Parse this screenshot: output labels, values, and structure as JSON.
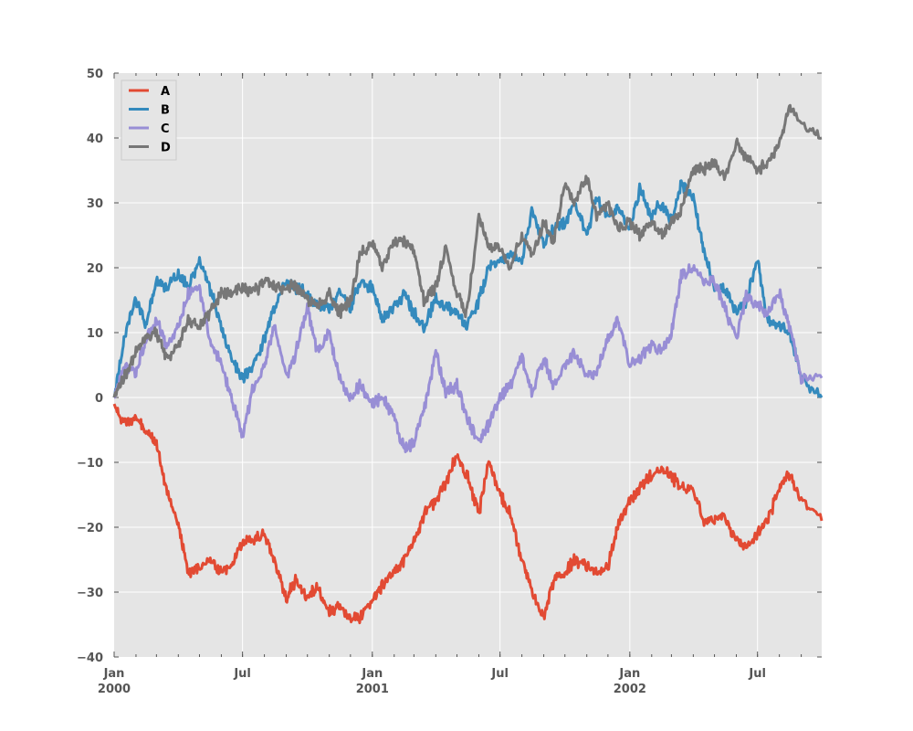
{
  "chart_data": {
    "type": "line",
    "title": "",
    "xlabel": "",
    "ylabel": "",
    "xlim": [
      "2000-01-01",
      "2002-09-30"
    ],
    "ylim": [
      -40,
      50
    ],
    "yticks": [
      -40,
      -30,
      -20,
      -10,
      0,
      10,
      20,
      30,
      40,
      50
    ],
    "ytick_labels": [
      "−40",
      "−30",
      "−20",
      "−10",
      "0",
      "10",
      "20",
      "30",
      "40",
      "50"
    ],
    "xticks": [
      {
        "date": "2000-01-01",
        "label": "Jan",
        "sublabel": "2000"
      },
      {
        "date": "2000-07-01",
        "label": "Jul",
        "sublabel": ""
      },
      {
        "date": "2001-01-01",
        "label": "Jan",
        "sublabel": "2001"
      },
      {
        "date": "2001-07-01",
        "label": "Jul",
        "sublabel": ""
      },
      {
        "date": "2002-01-01",
        "label": "Jan",
        "sublabel": "2002"
      },
      {
        "date": "2002-07-01",
        "label": "Jul",
        "sublabel": ""
      }
    ],
    "grid": true,
    "legend_position": "top-left",
    "colors": {
      "background": "#e5e5e5",
      "grid": "#ffffff",
      "A": "#e24a33",
      "B": "#348abd",
      "C": "#988ed5",
      "D": "#777777"
    },
    "series": [
      {
        "name": "A",
        "color": "#e24a33",
        "points": [
          [
            "2000-01-01",
            -1
          ],
          [
            "2000-01-15",
            -4
          ],
          [
            "2000-02-01",
            -3
          ],
          [
            "2000-02-15",
            -5
          ],
          [
            "2000-03-01",
            -7
          ],
          [
            "2000-03-15",
            -14
          ],
          [
            "2000-04-01",
            -20
          ],
          [
            "2000-04-15",
            -27
          ],
          [
            "2000-05-01",
            -26
          ],
          [
            "2000-05-15",
            -25
          ],
          [
            "2000-06-01",
            -27
          ],
          [
            "2000-06-15",
            -26
          ],
          [
            "2000-07-01",
            -22
          ],
          [
            "2000-07-15",
            -22
          ],
          [
            "2000-08-01",
            -21
          ],
          [
            "2000-08-15",
            -25
          ],
          [
            "2000-09-01",
            -31
          ],
          [
            "2000-09-15",
            -28
          ],
          [
            "2000-10-01",
            -31
          ],
          [
            "2000-10-15",
            -29
          ],
          [
            "2000-11-01",
            -33
          ],
          [
            "2000-11-15",
            -32
          ],
          [
            "2000-12-01",
            -34
          ],
          [
            "2000-12-15",
            -34
          ],
          [
            "2001-01-01",
            -31
          ],
          [
            "2001-01-15",
            -29
          ],
          [
            "2001-02-01",
            -27
          ],
          [
            "2001-02-15",
            -25
          ],
          [
            "2001-03-01",
            -22
          ],
          [
            "2001-03-15",
            -18
          ],
          [
            "2001-04-01",
            -16
          ],
          [
            "2001-04-15",
            -13
          ],
          [
            "2001-05-01",
            -9
          ],
          [
            "2001-05-15",
            -12
          ],
          [
            "2001-06-01",
            -18
          ],
          [
            "2001-06-15",
            -10
          ],
          [
            "2001-07-01",
            -15
          ],
          [
            "2001-07-15",
            -18
          ],
          [
            "2001-08-01",
            -25
          ],
          [
            "2001-08-15",
            -30
          ],
          [
            "2001-09-01",
            -34
          ],
          [
            "2001-09-15",
            -28
          ],
          [
            "2001-10-01",
            -27
          ],
          [
            "2001-10-15",
            -25
          ],
          [
            "2001-11-01",
            -26
          ],
          [
            "2001-11-15",
            -27
          ],
          [
            "2001-12-01",
            -26
          ],
          [
            "2001-12-15",
            -20
          ],
          [
            "2002-01-01",
            -16
          ],
          [
            "2002-01-15",
            -14
          ],
          [
            "2002-02-01",
            -12
          ],
          [
            "2002-02-15",
            -11
          ],
          [
            "2002-03-01",
            -12
          ],
          [
            "2002-03-15",
            -14
          ],
          [
            "2002-04-01",
            -14
          ],
          [
            "2002-04-15",
            -19
          ],
          [
            "2002-05-01",
            -19
          ],
          [
            "2002-05-15",
            -18
          ],
          [
            "2002-06-01",
            -22
          ],
          [
            "2002-06-15",
            -23
          ],
          [
            "2002-07-01",
            -21
          ],
          [
            "2002-07-15",
            -19
          ],
          [
            "2002-08-01",
            -14
          ],
          [
            "2002-08-15",
            -12
          ],
          [
            "2002-09-01",
            -16
          ],
          [
            "2002-09-30",
            -19
          ]
        ]
      },
      {
        "name": "B",
        "color": "#348abd",
        "points": [
          [
            "2000-01-01",
            0
          ],
          [
            "2000-01-15",
            9
          ],
          [
            "2000-02-01",
            15
          ],
          [
            "2000-02-15",
            11
          ],
          [
            "2000-03-01",
            18
          ],
          [
            "2000-03-15",
            17
          ],
          [
            "2000-04-01",
            19
          ],
          [
            "2000-04-15",
            17
          ],
          [
            "2000-05-01",
            21
          ],
          [
            "2000-05-15",
            17
          ],
          [
            "2000-06-01",
            11
          ],
          [
            "2000-06-15",
            6
          ],
          [
            "2000-07-01",
            3
          ],
          [
            "2000-07-15",
            5
          ],
          [
            "2000-08-01",
            9
          ],
          [
            "2000-08-15",
            14
          ],
          [
            "2000-09-01",
            18
          ],
          [
            "2000-09-15",
            17
          ],
          [
            "2000-10-01",
            16
          ],
          [
            "2000-10-15",
            14
          ],
          [
            "2000-11-01",
            14
          ],
          [
            "2000-11-15",
            16
          ],
          [
            "2000-12-01",
            14
          ],
          [
            "2000-12-15",
            18
          ],
          [
            "2001-01-01",
            17
          ],
          [
            "2001-01-15",
            12
          ],
          [
            "2001-02-01",
            14
          ],
          [
            "2001-02-15",
            16
          ],
          [
            "2001-03-01",
            13
          ],
          [
            "2001-03-15",
            11
          ],
          [
            "2001-04-01",
            15
          ],
          [
            "2001-04-15",
            14
          ],
          [
            "2001-05-01",
            13
          ],
          [
            "2001-05-15",
            11
          ],
          [
            "2001-06-01",
            15
          ],
          [
            "2001-06-15",
            20
          ],
          [
            "2001-07-01",
            21
          ],
          [
            "2001-07-15",
            22
          ],
          [
            "2001-08-01",
            21
          ],
          [
            "2001-08-15",
            29
          ],
          [
            "2001-09-01",
            24
          ],
          [
            "2001-09-15",
            26
          ],
          [
            "2001-10-01",
            27
          ],
          [
            "2001-10-15",
            30
          ],
          [
            "2001-11-01",
            25
          ],
          [
            "2001-11-15",
            31
          ],
          [
            "2001-12-01",
            28
          ],
          [
            "2001-12-15",
            29
          ],
          [
            "2002-01-01",
            26
          ],
          [
            "2002-01-15",
            32
          ],
          [
            "2002-02-01",
            28
          ],
          [
            "2002-02-15",
            30
          ],
          [
            "2002-03-01",
            27
          ],
          [
            "2002-03-15",
            33
          ],
          [
            "2002-04-01",
            31
          ],
          [
            "2002-04-15",
            23
          ],
          [
            "2002-05-01",
            17
          ],
          [
            "2002-05-15",
            17
          ],
          [
            "2002-06-01",
            13
          ],
          [
            "2002-06-15",
            15
          ],
          [
            "2002-07-01",
            21
          ],
          [
            "2002-07-15",
            12
          ],
          [
            "2002-08-01",
            11
          ],
          [
            "2002-08-15",
            10
          ],
          [
            "2002-09-01",
            3
          ],
          [
            "2002-09-30",
            0
          ]
        ]
      },
      {
        "name": "C",
        "color": "#988ed5",
        "points": [
          [
            "2000-01-01",
            0
          ],
          [
            "2000-01-15",
            5
          ],
          [
            "2000-02-01",
            4
          ],
          [
            "2000-02-15",
            9
          ],
          [
            "2000-03-01",
            12
          ],
          [
            "2000-03-15",
            8
          ],
          [
            "2000-04-01",
            11
          ],
          [
            "2000-04-15",
            16
          ],
          [
            "2000-05-01",
            17
          ],
          [
            "2000-05-15",
            9
          ],
          [
            "2000-06-01",
            5
          ],
          [
            "2000-06-15",
            0
          ],
          [
            "2000-07-01",
            -6
          ],
          [
            "2000-07-15",
            1
          ],
          [
            "2000-08-01",
            5
          ],
          [
            "2000-08-15",
            11
          ],
          [
            "2000-09-01",
            3
          ],
          [
            "2000-09-15",
            7
          ],
          [
            "2000-10-01",
            14
          ],
          [
            "2000-10-15",
            7
          ],
          [
            "2000-11-01",
            10
          ],
          [
            "2000-11-15",
            3
          ],
          [
            "2000-12-01",
            0
          ],
          [
            "2000-12-15",
            2
          ],
          [
            "2001-01-01",
            -1
          ],
          [
            "2001-01-15",
            0
          ],
          [
            "2001-02-01",
            -3
          ],
          [
            "2001-02-15",
            -8
          ],
          [
            "2001-03-01",
            -7
          ],
          [
            "2001-03-15",
            -2
          ],
          [
            "2001-04-01",
            7
          ],
          [
            "2001-04-15",
            1
          ],
          [
            "2001-05-01",
            2
          ],
          [
            "2001-05-15",
            -3
          ],
          [
            "2001-06-01",
            -7
          ],
          [
            "2001-06-15",
            -4
          ],
          [
            "2001-07-01",
            0
          ],
          [
            "2001-07-15",
            2
          ],
          [
            "2001-08-01",
            6
          ],
          [
            "2001-08-15",
            1
          ],
          [
            "2001-09-01",
            6
          ],
          [
            "2001-09-15",
            2
          ],
          [
            "2001-10-01",
            5
          ],
          [
            "2001-10-15",
            7
          ],
          [
            "2001-11-01",
            3
          ],
          [
            "2001-11-15",
            4
          ],
          [
            "2001-12-01",
            9
          ],
          [
            "2001-12-15",
            12
          ],
          [
            "2002-01-01",
            5
          ],
          [
            "2002-01-15",
            6
          ],
          [
            "2002-02-01",
            8
          ],
          [
            "2002-02-15",
            7
          ],
          [
            "2002-03-01",
            10
          ],
          [
            "2002-03-15",
            19
          ],
          [
            "2002-04-01",
            20
          ],
          [
            "2002-04-15",
            18
          ],
          [
            "2002-05-01",
            18
          ],
          [
            "2002-05-15",
            14
          ],
          [
            "2002-06-01",
            9
          ],
          [
            "2002-06-15",
            16
          ],
          [
            "2002-07-01",
            14
          ],
          [
            "2002-07-15",
            13
          ],
          [
            "2002-08-01",
            16
          ],
          [
            "2002-08-15",
            11
          ],
          [
            "2002-09-01",
            3
          ],
          [
            "2002-09-30",
            3
          ]
        ]
      },
      {
        "name": "D",
        "color": "#777777",
        "points": [
          [
            "2000-01-01",
            0
          ],
          [
            "2000-01-15",
            3
          ],
          [
            "2000-02-01",
            7
          ],
          [
            "2000-02-15",
            9
          ],
          [
            "2000-03-01",
            10
          ],
          [
            "2000-03-15",
            6
          ],
          [
            "2000-04-01",
            8
          ],
          [
            "2000-04-15",
            12
          ],
          [
            "2000-05-01",
            11
          ],
          [
            "2000-05-15",
            13
          ],
          [
            "2000-06-01",
            16
          ],
          [
            "2000-06-15",
            16
          ],
          [
            "2000-07-01",
            17
          ],
          [
            "2000-07-15",
            16
          ],
          [
            "2000-08-01",
            18
          ],
          [
            "2000-08-15",
            17
          ],
          [
            "2000-09-01",
            17
          ],
          [
            "2000-09-15",
            17
          ],
          [
            "2000-10-01",
            15
          ],
          [
            "2000-10-15",
            14
          ],
          [
            "2000-11-01",
            16
          ],
          [
            "2000-11-15",
            13
          ],
          [
            "2000-12-01",
            15
          ],
          [
            "2000-12-15",
            22
          ],
          [
            "2001-01-01",
            24
          ],
          [
            "2001-01-15",
            20
          ],
          [
            "2001-02-01",
            24
          ],
          [
            "2001-02-15",
            24
          ],
          [
            "2001-03-01",
            23
          ],
          [
            "2001-03-15",
            15
          ],
          [
            "2001-04-01",
            17
          ],
          [
            "2001-04-15",
            23
          ],
          [
            "2001-05-01",
            16
          ],
          [
            "2001-05-15",
            13
          ],
          [
            "2001-06-01",
            28
          ],
          [
            "2001-06-15",
            23
          ],
          [
            "2001-07-01",
            23
          ],
          [
            "2001-07-15",
            20
          ],
          [
            "2001-08-01",
            25
          ],
          [
            "2001-08-15",
            22
          ],
          [
            "2001-09-01",
            27
          ],
          [
            "2001-09-15",
            24
          ],
          [
            "2001-10-01",
            33
          ],
          [
            "2001-10-15",
            30
          ],
          [
            "2001-11-01",
            34
          ],
          [
            "2001-11-15",
            28
          ],
          [
            "2001-12-01",
            30
          ],
          [
            "2001-12-15",
            26
          ],
          [
            "2002-01-01",
            27
          ],
          [
            "2002-01-15",
            25
          ],
          [
            "2002-02-01",
            27
          ],
          [
            "2002-02-15",
            25
          ],
          [
            "2002-03-01",
            27
          ],
          [
            "2002-03-15",
            29
          ],
          [
            "2002-04-01",
            35
          ],
          [
            "2002-04-15",
            35
          ],
          [
            "2002-05-01",
            36
          ],
          [
            "2002-05-15",
            34
          ],
          [
            "2002-06-01",
            39
          ],
          [
            "2002-06-15",
            37
          ],
          [
            "2002-07-01",
            35
          ],
          [
            "2002-07-15",
            36
          ],
          [
            "2002-08-01",
            39
          ],
          [
            "2002-08-15",
            45
          ],
          [
            "2002-09-01",
            42
          ],
          [
            "2002-09-30",
            40
          ]
        ]
      }
    ]
  }
}
